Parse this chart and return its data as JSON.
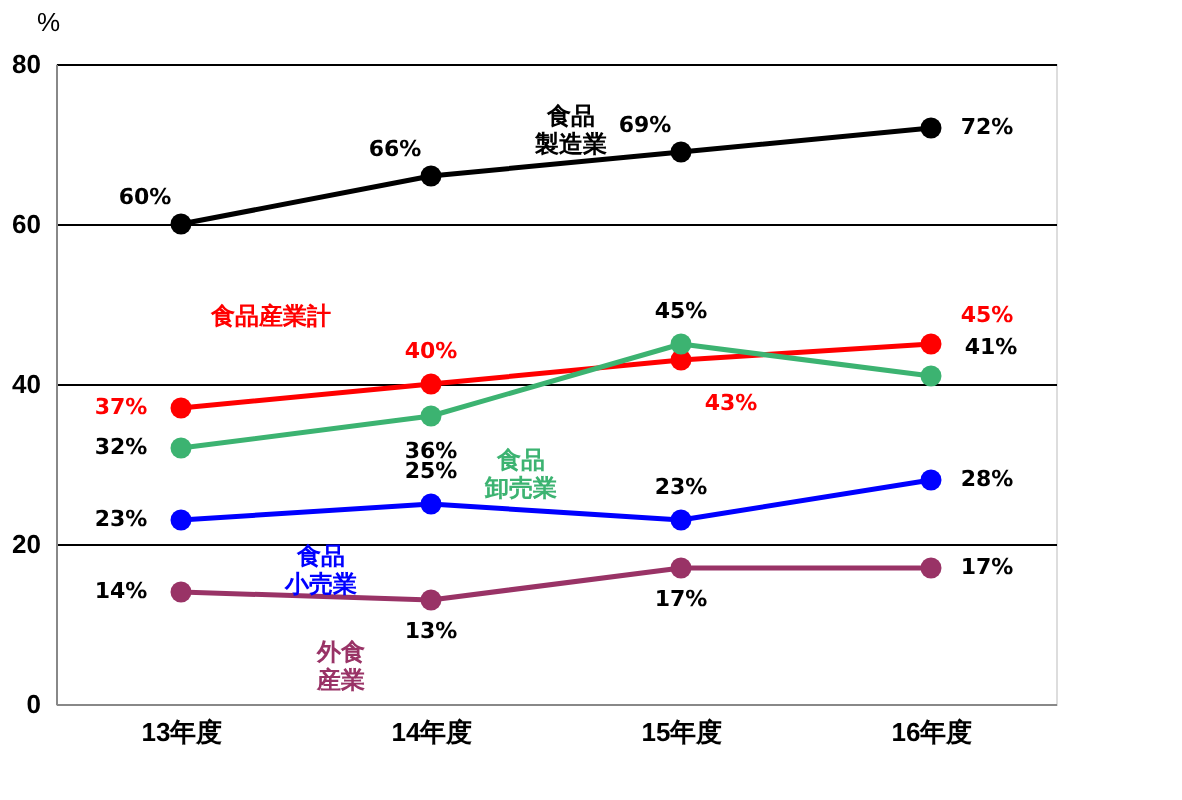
{
  "chart_data": {
    "type": "line",
    "ylabel": "%",
    "categories": [
      "13年度",
      "14年度",
      "15年度",
      "16年度"
    ],
    "series": [
      {
        "name": "食品製造業",
        "color": "#000000",
        "values": [
          60,
          66,
          69,
          72
        ],
        "value_labels": [
          "60%",
          "66%",
          "69%",
          "72%"
        ]
      },
      {
        "name": "食品産業計",
        "color": "#ff0000",
        "values": [
          37,
          40,
          43,
          45
        ],
        "value_labels": [
          "37%",
          "40%",
          "43%",
          "45%"
        ]
      },
      {
        "name": "食品卸売業",
        "color": "#3cb371",
        "values": [
          32,
          36,
          45,
          41
        ],
        "value_labels": [
          "32%",
          "36%",
          "45%",
          "41%"
        ]
      },
      {
        "name": "食品小売業",
        "color": "#0000ff",
        "values": [
          23,
          25,
          23,
          28
        ],
        "value_labels": [
          "23%",
          "25%",
          "23%",
          "28%"
        ]
      },
      {
        "name": "外食産業",
        "color": "#993366",
        "values": [
          14,
          13,
          17,
          17
        ],
        "value_labels": [
          "14%",
          "13%",
          "17%",
          "17%"
        ]
      }
    ],
    "ylim": [
      0,
      80
    ],
    "yticks": [
      0,
      20,
      40,
      60,
      80
    ],
    "grid": "y",
    "legend": false,
    "marker": "circle",
    "line_style": "solid"
  }
}
